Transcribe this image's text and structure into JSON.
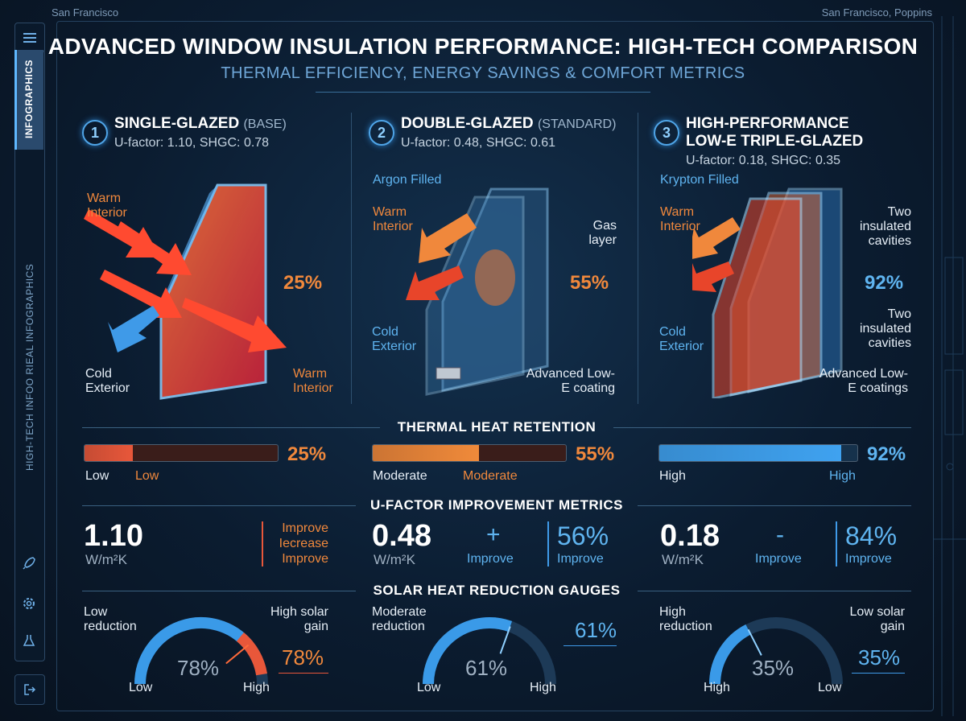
{
  "corners": {
    "left": "San Francisco",
    "right": "San Francisco, Poppins"
  },
  "sidebar": {
    "tab_label": "INFOGRAPHICS",
    "vertical_label": "HIGH-TECH INFOO RIEAL INFOGRAPHICS"
  },
  "title": "ADVANCED WINDOW INSULATION PERFORMANCE: HIGH-TECH COMPARISON",
  "subtitle": "THERMAL EFFICIENCY, ENERGY SAVINGS & COMFORT METRICS",
  "panels": [
    {
      "num": "1",
      "title": "SINGLE-GLAZED",
      "tag": "(BASE)",
      "specs": "U-factor: 1.10, SHGC: 0.78",
      "warm_in": "Warm Interior",
      "cold_ext": "Cold Exterior",
      "warm_in2": "Warm Interior",
      "pct": "25%"
    },
    {
      "num": "2",
      "title": "DOUBLE-GLAZED",
      "tag": "(STANDARD)",
      "specs": "U-factor: 0.48, SHGC: 0.61",
      "fill": "Argon Filled",
      "warm_in": "Warm Interior",
      "cold_ext": "Cold Exterior",
      "gas": "Gas layer",
      "coat": "Advanced Low-E coating",
      "pct": "55%"
    },
    {
      "num": "3",
      "title1": "HIGH-PERFORMANCE",
      "title2": "LOW-E TRIPLE-GLAZED",
      "specs": "U-factor: 0.18, SHGC: 0.35",
      "fill": "Krypton Filled",
      "warm_in": "Warm Interior",
      "cold_ext": "Cold Exterior",
      "cav1": "Two insulated cavities",
      "cav2": "Two insulated cavities",
      "coat": "Advanced Low-E coatings",
      "pct": "92%"
    }
  ],
  "retention": {
    "heading": "THERMAL HEAT RETENTION",
    "bars": [
      {
        "value": 25,
        "pct": "25%",
        "left": "Low",
        "right": "Low",
        "color": "#e8573a"
      },
      {
        "value": 55,
        "pct": "55%",
        "left": "Moderate",
        "right": "Moderate",
        "color": "#f08a3a"
      },
      {
        "value": 92,
        "pct": "92%",
        "left": "High",
        "right": "High",
        "color": "#3fa2f0"
      }
    ]
  },
  "ufactor": {
    "heading": "U-FACTOR IMPROVEMENT METRICS",
    "cols": [
      {
        "value": "1.10",
        "unit": "W/m²K",
        "l1": "Improve",
        "l2": "Iecrease",
        "l3": "Improve"
      },
      {
        "value": "0.48",
        "unit": "W/m²K",
        "sign": "+",
        "sign_lbl": "Improve",
        "pct": "56%",
        "pct_lbl": "Improve"
      },
      {
        "value": "0.18",
        "unit": "W/m²K",
        "sign": "-",
        "sign_lbl": "Improve",
        "pct": "84%",
        "pct_lbl": "Improve"
      }
    ]
  },
  "solar": {
    "heading": "SOLAR HEAT REDUCTION GAUGES",
    "gauges": [
      {
        "value": 78,
        "center": "78%",
        "tl": "Low reduction",
        "tr": "High solar gain",
        "pct": "78%",
        "low": "Low",
        "high": "High"
      },
      {
        "value": 61,
        "center": "61%",
        "tl": "Moderate reduction",
        "pct": "61%",
        "low": "Low",
        "high": "High"
      },
      {
        "value": 35,
        "center": "35%",
        "tl": "High reduction",
        "tr": "Low solar gain",
        "pct": "35%",
        "low": "High",
        "high": "Low"
      }
    ]
  }
}
